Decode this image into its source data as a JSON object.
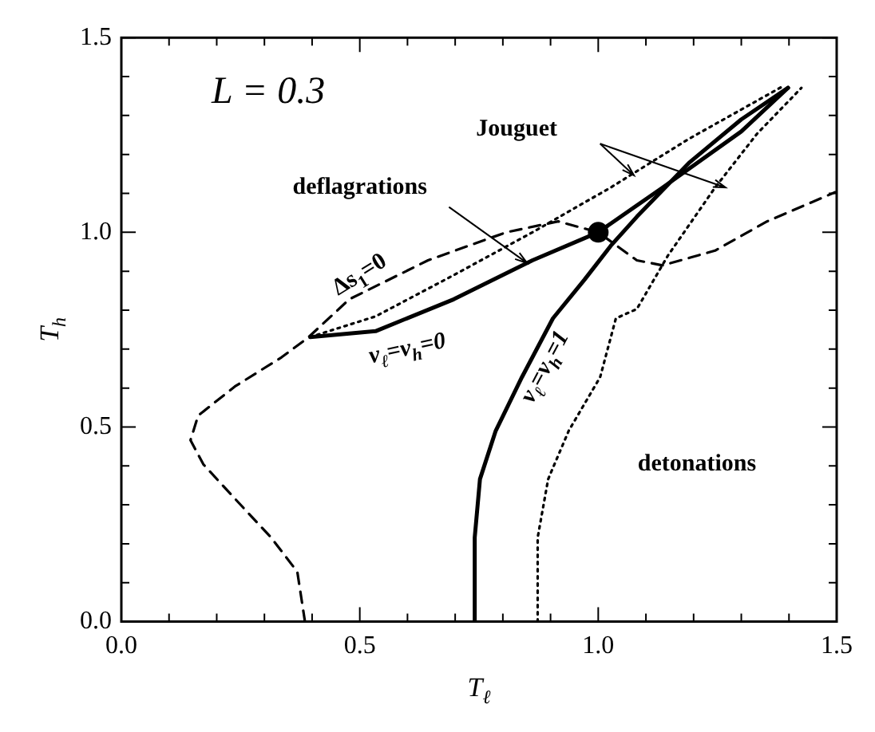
{
  "chart_data": {
    "type": "line",
    "xlabel": "T$_{ℓ}$",
    "ylabel": "T$_{h}$",
    "xlim": [
      0,
      1.5
    ],
    "ylim": [
      0,
      1.5
    ],
    "xticks": [
      {
        "value": 0,
        "label": "0.0"
      },
      {
        "value": 0.1,
        "label": null
      },
      {
        "value": 0.2,
        "label": null
      },
      {
        "value": 0.3,
        "label": null
      },
      {
        "value": 0.4,
        "label": null
      },
      {
        "value": 0.5,
        "label": "0.5"
      },
      {
        "value": 0.6,
        "label": null
      },
      {
        "value": 0.7,
        "label": null
      },
      {
        "value": 0.8,
        "label": null
      },
      {
        "value": 0.9,
        "label": null
      },
      {
        "value": 1,
        "label": "1.0"
      },
      {
        "value": 1.1,
        "label": null
      },
      {
        "value": 1.2,
        "label": null
      },
      {
        "value": 1.3,
        "label": null
      },
      {
        "value": 1.4,
        "label": null
      },
      {
        "value": 1.5,
        "label": "1.5"
      }
    ],
    "yticks": [
      {
        "value": 0,
        "label": "0.0"
      },
      {
        "value": 0.1,
        "label": null
      },
      {
        "value": 0.2,
        "label": null
      },
      {
        "value": 0.3,
        "label": null
      },
      {
        "value": 0.4,
        "label": null
      },
      {
        "value": 0.5,
        "label": "0.5"
      },
      {
        "value": 0.6,
        "label": null
      },
      {
        "value": 0.7,
        "label": null
      },
      {
        "value": 0.8,
        "label": null
      },
      {
        "value": 0.9,
        "label": null
      },
      {
        "value": 1,
        "label": "1.0"
      },
      {
        "value": 1.1,
        "label": null
      },
      {
        "value": 1.2,
        "label": null
      },
      {
        "value": 1.3,
        "label": null
      },
      {
        "value": 1.4,
        "label": null
      },
      {
        "value": 1.5,
        "label": "1.5"
      }
    ],
    "grid": false,
    "legend": false,
    "marker": "none",
    "series": [
      {
        "color": "#000000",
        "line_style": "solid",
        "x": [
          0.396,
          0.533,
          0.697,
          0.862,
          1.0,
          1.135,
          1.3,
          1.398
        ],
        "values": [
          0.731,
          0.746,
          0.828,
          0.928,
          1.0,
          1.115,
          1.259,
          1.371
        ]
      },
      {
        "color": "#000000",
        "line_style": "solid",
        "x": [
          0.741,
          0.741,
          0.752,
          0.785,
          0.84,
          0.905,
          0.971,
          1.026,
          1.081,
          1.19,
          1.3,
          1.398
        ],
        "values": [
          0,
          0.216,
          0.366,
          0.49,
          0.628,
          0.779,
          0.878,
          0.965,
          1.04,
          1.178,
          1.29,
          1.371
        ]
      },
      {
        "color": "#000000",
        "line_style": "dotted",
        "x": [
          0.396,
          0.533,
          0.697,
          0.862,
          1.026,
          1.19,
          1.387
        ],
        "values": [
          0.731,
          0.784,
          0.89,
          1.0,
          1.115,
          1.24,
          1.375
        ]
      },
      {
        "color": "#000000",
        "line_style": "dotted",
        "x": [
          0.873,
          0.873,
          0.895,
          0.938,
          1.004,
          1.037,
          1.081,
          1.146,
          1.245,
          1.333,
          1.426
        ],
        "values": [
          0,
          0.216,
          0.366,
          0.49,
          0.628,
          0.779,
          0.803,
          0.94,
          1.115,
          1.253,
          1.371
        ]
      },
      {
        "color": "#000000",
        "line_style": "dashed",
        "x": [
          0.385,
          0.369,
          0.314,
          0.238,
          0.172,
          0.145,
          0.161,
          0.238,
          0.336,
          0.391,
          0.478,
          0.643,
          0.807,
          0.916,
          1.0,
          1.081,
          1.135,
          1.245,
          1.354,
          1.497
        ],
        "values": [
          0,
          0.128,
          0.216,
          0.316,
          0.404,
          0.466,
          0.529,
          0.604,
          0.679,
          0.729,
          0.828,
          0.928,
          1.0,
          1.028,
          1.0,
          0.928,
          0.915,
          0.953,
          1.028,
          1.103
        ]
      },
      {
        "type": "scatter",
        "marker": "circle",
        "color": "#000000",
        "x": [
          1.0
        ],
        "values": [
          1.0
        ]
      }
    ],
    "annotations": [
      "L = 0.3",
      "Jouguet",
      {
        "text": "deflagrations",
        "x": 0.851,
        "y": 0.921
      },
      "detonations",
      "Δs$_{1}$=0",
      "v$_{ℓ}$=v$_{h}$=0",
      "v$_{ℓ}$=v$_{h}$=1"
    ]
  }
}
